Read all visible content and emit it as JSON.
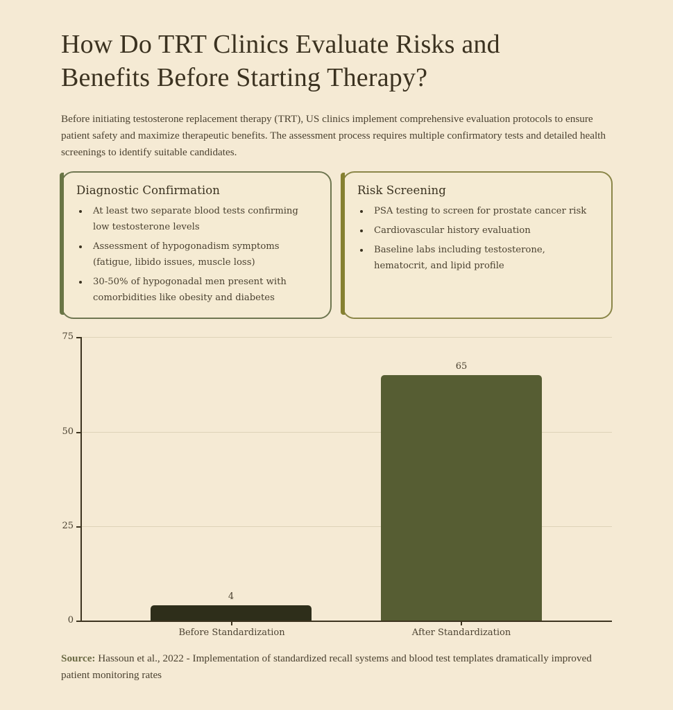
{
  "header": {
    "title": "How Do TRT Clinics Evaluate Risks and Benefits Before Starting Therapy?",
    "intro": "Before initiating testosterone replacement therapy (TRT), US clinics implement comprehensive evaluation protocols to ensure patient safety and maximize therapeutic benefits. The assessment process requires multiple confirmatory tests and detailed health screenings to identify suitable candidates."
  },
  "cards": [
    {
      "title": "Diagnostic Confirmation",
      "accent": "#697545",
      "items": [
        "At least two separate blood tests confirming low testosterone levels",
        "Assessment of hypogonadism symptoms (fatigue, libido issues, muscle loss)",
        "30-50% of hypogonadal men present with comorbidities like obesity and diabetes"
      ]
    },
    {
      "title": "Risk Screening",
      "accent": "#858030",
      "items": [
        "PSA testing to screen for prostate cancer risk",
        "Cardiovascular history evaluation",
        "Baseline labs including testosterone, hematocrit, and lipid profile"
      ]
    }
  ],
  "chart_data": {
    "type": "bar",
    "title": "",
    "xlabel": "",
    "ylabel": "",
    "categories": [
      "Before Standardization",
      "After Standardization"
    ],
    "values": [
      4,
      65
    ],
    "data_labels": [
      "4",
      "65"
    ],
    "colors": [
      "#2e2e1a",
      "#565d33"
    ],
    "ylim": [
      0,
      75
    ],
    "yticks": [
      0,
      25,
      50,
      75
    ],
    "ytick_labels": [
      "0",
      "25",
      "50",
      "75"
    ],
    "grid": true,
    "legend": null
  },
  "source": {
    "label": "Source:",
    "text": " Hassoun et al., 2022 - Implementation of standardized recall systems and blood test templates dramatically improved patient monitoring rates"
  }
}
